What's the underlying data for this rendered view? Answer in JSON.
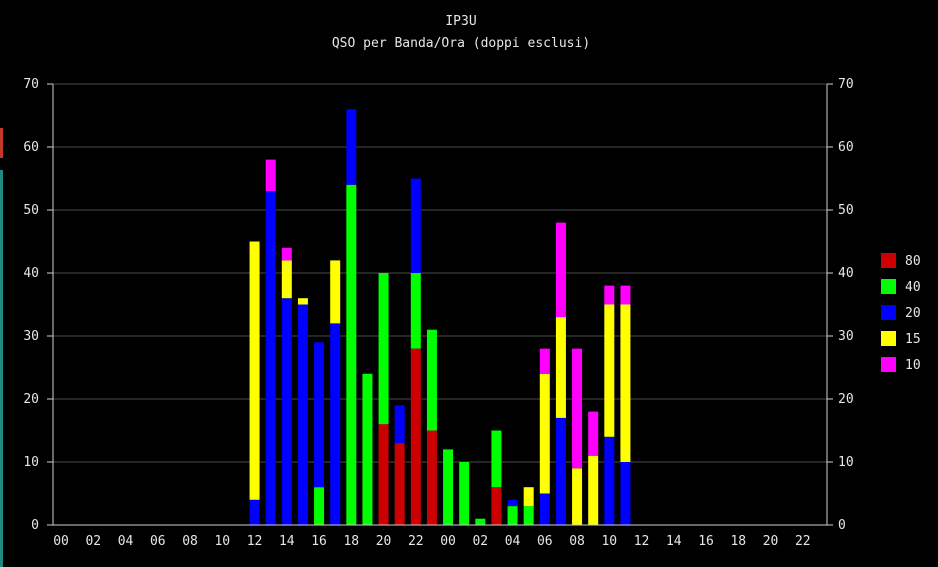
{
  "chart_data": {
    "type": "bar",
    "stacked": true,
    "title": "IP3U",
    "subtitle": "QSO per Banda/Ora (doppi esclusi)",
    "xlabel": "",
    "ylabel": "",
    "ylim": [
      0,
      70
    ],
    "yticks": [
      0,
      10,
      20,
      30,
      40,
      50,
      60,
      70
    ],
    "grid": true,
    "legend_position": "right",
    "x_tick_labels": [
      "00",
      "02",
      "04",
      "06",
      "08",
      "10",
      "12",
      "14",
      "16",
      "18",
      "20",
      "22",
      "00",
      "02",
      "04",
      "06",
      "08",
      "10",
      "12",
      "14",
      "16",
      "18",
      "20",
      "22"
    ],
    "categories": [
      "00",
      "01",
      "02",
      "03",
      "04",
      "05",
      "06",
      "07",
      "08",
      "09",
      "10",
      "11",
      "12",
      "13",
      "14",
      "15",
      "16",
      "17",
      "18",
      "19",
      "20",
      "21",
      "22",
      "23",
      "00",
      "01",
      "02",
      "03",
      "04",
      "05",
      "06",
      "07",
      "08",
      "09",
      "10",
      "11",
      "12",
      "13",
      "14",
      "15",
      "16",
      "17",
      "18",
      "19",
      "20",
      "21",
      "22",
      "23"
    ],
    "series": [
      {
        "name": "80",
        "color": "#cc0000",
        "values": [
          0,
          0,
          0,
          0,
          0,
          0,
          0,
          0,
          0,
          0,
          0,
          0,
          0,
          0,
          0,
          0,
          0,
          0,
          0,
          0,
          16,
          13,
          28,
          15,
          0,
          0,
          0,
          6,
          0,
          0,
          0,
          0,
          0,
          0,
          0,
          0,
          0,
          0,
          0,
          0,
          0,
          0,
          0,
          0,
          0,
          0,
          0,
          0
        ]
      },
      {
        "name": "40",
        "color": "#00ff00",
        "values": [
          0,
          0,
          0,
          0,
          0,
          0,
          0,
          0,
          0,
          0,
          0,
          0,
          0,
          0,
          0,
          0,
          6,
          0,
          54,
          24,
          24,
          0,
          12,
          16,
          12,
          10,
          1,
          9,
          3,
          3,
          0,
          0,
          0,
          0,
          0,
          0,
          0,
          0,
          0,
          0,
          0,
          0,
          0,
          0,
          0,
          0,
          0,
          0
        ]
      },
      {
        "name": "20",
        "color": "#0000ff",
        "values": [
          0,
          0,
          0,
          0,
          0,
          0,
          0,
          0,
          0,
          0,
          0,
          0,
          4,
          53,
          36,
          35,
          23,
          32,
          12,
          0,
          0,
          6,
          15,
          0,
          0,
          0,
          0,
          0,
          1,
          0,
          5,
          17,
          0,
          0,
          14,
          10,
          0,
          0,
          0,
          0,
          0,
          0,
          0,
          0,
          0,
          0,
          0,
          0
        ]
      },
      {
        "name": "15",
        "color": "#ffff00",
        "values": [
          0,
          0,
          0,
          0,
          0,
          0,
          0,
          0,
          0,
          0,
          0,
          0,
          41,
          0,
          6,
          1,
          0,
          10,
          0,
          0,
          0,
          0,
          0,
          0,
          0,
          0,
          0,
          0,
          0,
          3,
          19,
          16,
          9,
          11,
          21,
          25,
          0,
          0,
          0,
          0,
          0,
          0,
          0,
          0,
          0,
          0,
          0,
          0
        ]
      },
      {
        "name": "10",
        "color": "#ff00ff",
        "values": [
          0,
          0,
          0,
          0,
          0,
          0,
          0,
          0,
          0,
          0,
          0,
          0,
          0,
          5,
          2,
          0,
          0,
          0,
          0,
          0,
          0,
          0,
          0,
          0,
          0,
          0,
          0,
          0,
          0,
          0,
          4,
          15,
          19,
          7,
          3,
          3,
          0,
          0,
          0,
          0,
          0,
          0,
          0,
          0,
          0,
          0,
          0,
          0
        ]
      }
    ]
  }
}
